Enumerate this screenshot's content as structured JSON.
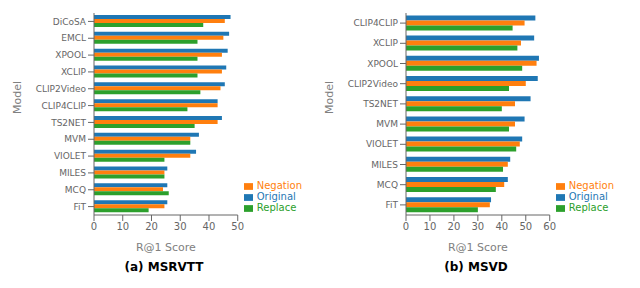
{
  "chart_data": [
    {
      "type": "bar",
      "orientation": "horizontal",
      "title": "(a) MSRVTT",
      "xlabel": "R@1 Score",
      "ylabel": "Model",
      "categories": [
        "DiCoSA",
        "EMCL",
        "XPOOL",
        "XCLIP",
        "CLIP2Video",
        "CLIP4CLIP",
        "TS2NET",
        "MVM",
        "VIOLET",
        "MILES",
        "MCQ",
        "FiT"
      ],
      "series": [
        {
          "name": "Original",
          "color": "#1f77b4",
          "values": [
            47.5,
            47.0,
            46.5,
            46.0,
            45.5,
            43.0,
            44.5,
            36.5,
            35.5,
            25.5,
            25.5,
            25.5
          ]
        },
        {
          "name": "Negation",
          "color": "#ff7f0e",
          "values": [
            45.5,
            45.0,
            44.5,
            44.5,
            44.0,
            43.0,
            43.0,
            33.5,
            33.5,
            24.5,
            24.0,
            24.5
          ]
        },
        {
          "name": "Replace",
          "color": "#2ca02c",
          "values": [
            38.0,
            36.0,
            36.0,
            36.0,
            37.0,
            32.5,
            35.0,
            33.5,
            24.5,
            24.5,
            26.0,
            19.0
          ]
        }
      ],
      "xlim": [
        0,
        50
      ],
      "xticks": [
        0,
        10,
        20,
        30,
        40,
        50
      ],
      "legend": "lower right",
      "grid": false
    },
    {
      "type": "bar",
      "orientation": "horizontal",
      "title": "(b) MSVD",
      "xlabel": "R@1 Score",
      "ylabel": "Model",
      "categories": [
        "CLIP4CLIP",
        "XCLIP",
        "XPOOL",
        "CLIP2Video",
        "TS2NET",
        "MVM",
        "VIOLET",
        "MILES",
        "MCQ",
        "FiT"
      ],
      "series": [
        {
          "name": "Original",
          "color": "#1f77b4",
          "values": [
            54.0,
            53.5,
            55.5,
            55.0,
            52.0,
            49.5,
            48.5,
            43.5,
            42.5,
            35.5
          ]
        },
        {
          "name": "Negation",
          "color": "#ff7f0e",
          "values": [
            49.5,
            48.0,
            54.5,
            50.0,
            45.5,
            45.5,
            47.5,
            42.5,
            41.0,
            35.0
          ]
        },
        {
          "name": "Replace",
          "color": "#2ca02c",
          "values": [
            44.5,
            46.5,
            48.5,
            43.0,
            40.0,
            43.0,
            46.0,
            40.5,
            37.5,
            30.0
          ]
        }
      ],
      "xlim": [
        0,
        60
      ],
      "xticks": [
        0,
        10,
        20,
        30,
        40,
        50,
        60
      ],
      "legend": "lower right",
      "grid": false
    }
  ]
}
